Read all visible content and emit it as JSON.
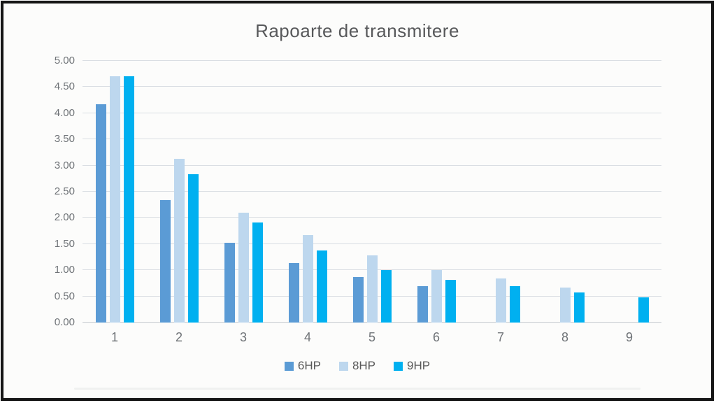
{
  "chart_data": {
    "type": "bar",
    "title": "Rapoarte de transmitere",
    "categories": [
      "1",
      "2",
      "3",
      "4",
      "5",
      "6",
      "7",
      "8",
      "9"
    ],
    "series": [
      {
        "name": "6HP",
        "color": "#5B9BD5",
        "values": [
          4.17,
          2.34,
          1.52,
          1.14,
          0.87,
          0.69,
          null,
          null,
          null
        ]
      },
      {
        "name": "8HP",
        "color": "#BDD7EE",
        "values": [
          4.7,
          3.13,
          2.1,
          1.67,
          1.29,
          1.0,
          0.84,
          0.67,
          null
        ]
      },
      {
        "name": "9HP",
        "color": "#00B0F0",
        "values": [
          4.7,
          2.84,
          1.91,
          1.38,
          1.0,
          0.81,
          0.7,
          0.58,
          0.48
        ]
      }
    ],
    "xlabel": "",
    "ylabel": "",
    "ylim": [
      0,
      5
    ],
    "y_tick_step": 0.5,
    "y_tick_labels": [
      "0.00",
      "0.50",
      "1.00",
      "1.50",
      "2.00",
      "2.50",
      "3.00",
      "3.50",
      "4.00",
      "4.50",
      "5.00"
    ],
    "grid": true,
    "legend_position": "bottom",
    "colors": {
      "grid": "#dadee3",
      "axis_line": "#c3c8ce",
      "tick_text": "#6f7377",
      "title_text": "#58595b",
      "legend_text": "#595959",
      "frame_border": "#161616",
      "background": "#fcfcfb"
    }
  }
}
